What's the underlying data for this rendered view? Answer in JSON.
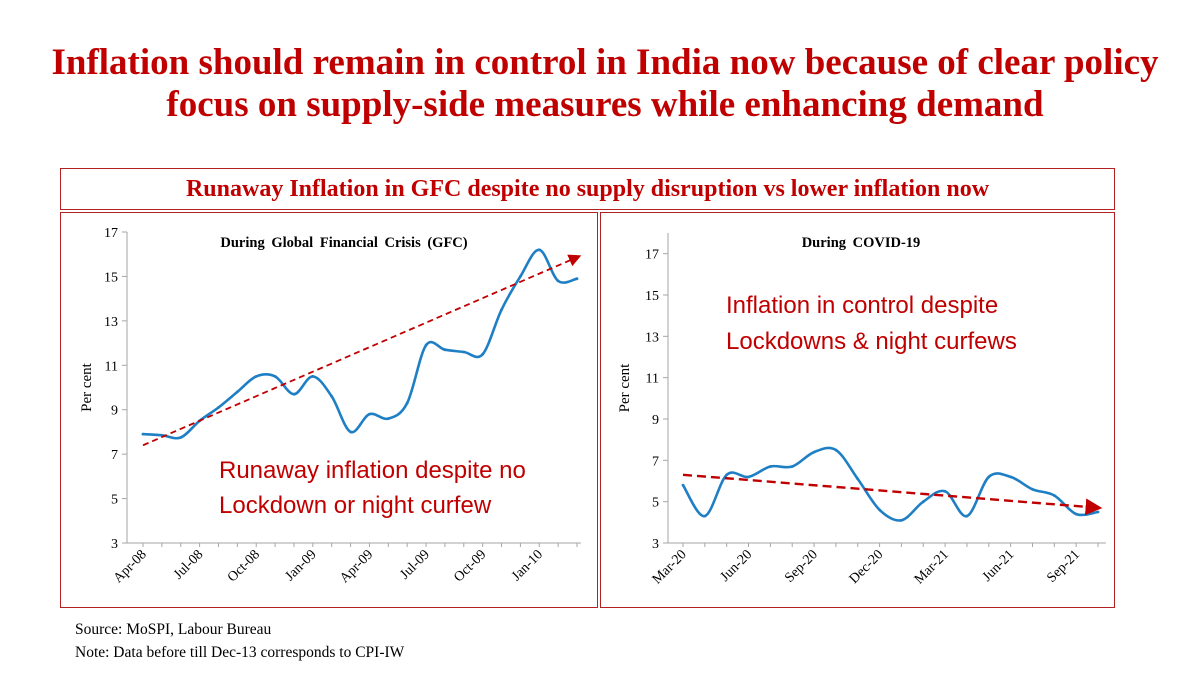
{
  "title": "Inflation should remain in control in India now because of clear policy focus on supply-side measures while enhancing demand",
  "subtitle": "Runaway Inflation in GFC despite no supply disruption vs lower inflation now",
  "footer": {
    "source": "Source: MoSPI, Labour Bureau",
    "note": "Note: Data before till Dec-13 corresponds to CPI-IW"
  },
  "colors": {
    "accent": "#c00000",
    "line": "#1f7fc4",
    "trend": "#c00000",
    "axis": "#a6a6a6"
  },
  "chart_data": [
    {
      "type": "line",
      "title": "During Global Financial Crisis (GFC)",
      "ylabel": "Per cent",
      "xlabel": "",
      "ylim": [
        3,
        17
      ],
      "yticks": [
        3,
        5,
        7,
        9,
        11,
        13,
        15,
        17
      ],
      "tick_labels": [
        "Apr-08",
        "Jul-08",
        "Oct-08",
        "Jan-09",
        "Apr-09",
        "Jul-09",
        "Oct-09",
        "Jan-10"
      ],
      "categories": [
        "Apr-08",
        "May-08",
        "Jun-08",
        "Jul-08",
        "Aug-08",
        "Sep-08",
        "Oct-08",
        "Nov-08",
        "Dec-08",
        "Jan-09",
        "Feb-09",
        "Mar-09",
        "Apr-09",
        "May-09",
        "Jun-09",
        "Jul-09",
        "Aug-09",
        "Sep-09",
        "Oct-09",
        "Nov-09",
        "Dec-09",
        "Jan-10",
        "Feb-10",
        "Mar-10"
      ],
      "series": [
        {
          "values": [
            7.9,
            7.85,
            7.75,
            8.5,
            9.1,
            9.8,
            10.5,
            10.5,
            9.7,
            10.5,
            9.6,
            8.0,
            8.8,
            8.6,
            9.3,
            11.9,
            11.7,
            11.6,
            11.5,
            13.5,
            15.0,
            16.2,
            14.8,
            14.9
          ]
        }
      ],
      "trend": {
        "start": 7.4,
        "end": 15.9
      },
      "annotation": "Runaway inflation despite no Lockdown or night curfew",
      "grid": false
    },
    {
      "type": "line",
      "title": "During COVID-19",
      "ylabel": "Per cent",
      "xlabel": "",
      "ylim": [
        3,
        18
      ],
      "yticks": [
        3,
        5,
        7,
        9,
        11,
        13,
        15,
        17
      ],
      "tick_labels": [
        "Mar-20",
        "Jun-20",
        "Sep-20",
        "Dec-20",
        "Mar-21",
        "Jun-21",
        "Sep-21"
      ],
      "categories": [
        "Mar-20",
        "Apr-20",
        "May-20",
        "Jun-20",
        "Jul-20",
        "Aug-20",
        "Sep-20",
        "Oct-20",
        "Nov-20",
        "Dec-20",
        "Jan-21",
        "Feb-21",
        "Mar-21",
        "Apr-21",
        "May-21",
        "Jun-21",
        "Jul-21",
        "Aug-21",
        "Sep-21",
        "Oct-21"
      ],
      "series": [
        {
          "values": [
            5.8,
            4.3,
            6.3,
            6.2,
            6.7,
            6.7,
            7.4,
            7.5,
            6.1,
            4.6,
            4.1,
            5.0,
            5.5,
            4.3,
            6.2,
            6.2,
            5.6,
            5.3,
            4.4,
            4.5
          ]
        }
      ],
      "trend": {
        "start": 6.3,
        "end": 4.7
      },
      "annotation": "Inflation in control despite Lockdowns & night curfews",
      "grid": false
    }
  ]
}
